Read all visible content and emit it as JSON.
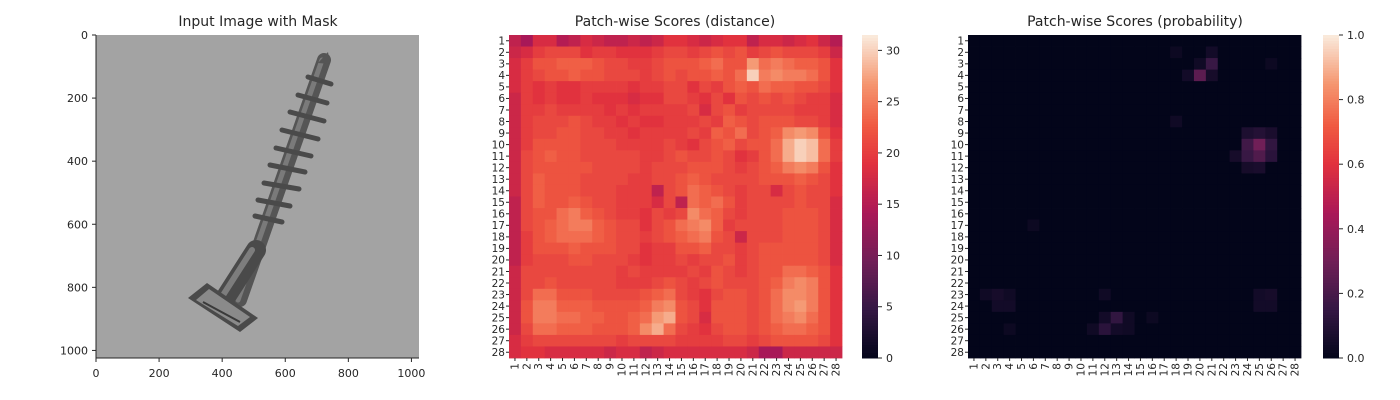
{
  "chart_data": [
    {
      "type": "image",
      "title": "Input Image with Mask",
      "xlabel": "",
      "ylabel": "",
      "xlim": [
        0,
        1024
      ],
      "ylim": [
        1024,
        0
      ],
      "xticks": [
        0,
        200,
        400,
        600,
        800,
        1000
      ],
      "yticks": [
        0,
        200,
        400,
        600,
        800,
        1000
      ],
      "grid": false
    },
    {
      "type": "heatmap",
      "title": "Patch-wise Scores (distance)",
      "xlabel": "",
      "ylabel": "",
      "rows": 28,
      "cols": 28,
      "colormap": "rocket",
      "colorbar_range": [
        0,
        31.5
      ],
      "colorbar_ticks": [
        0,
        5,
        10,
        15,
        20,
        25,
        30
      ],
      "x_tick_labels": [
        "1",
        "2",
        "3",
        "4",
        "5",
        "6",
        "7",
        "8",
        "9",
        "10",
        "11",
        "12",
        "13",
        "14",
        "15",
        "16",
        "17",
        "18",
        "19",
        "20",
        "21",
        "22",
        "23",
        "24",
        "25",
        "26",
        "27",
        "28"
      ],
      "y_tick_labels": [
        "1",
        "2",
        "3",
        "4",
        "5",
        "6",
        "7",
        "8",
        "9",
        "10",
        "11",
        "12",
        "13",
        "14",
        "15",
        "16",
        "17",
        "18",
        "19",
        "20",
        "21",
        "22",
        "23",
        "24",
        "25",
        "26",
        "27",
        "28"
      ],
      "values": [
        [
          16,
          14,
          18,
          18,
          15,
          16,
          18,
          17,
          16,
          16,
          17,
          16,
          17,
          19,
          19,
          18,
          17,
          18,
          19,
          19,
          16,
          18,
          18,
          17,
          18,
          19,
          17,
          15
        ],
        [
          17,
          18,
          20,
          21,
          21,
          21,
          19,
          20,
          20,
          19,
          19,
          19,
          20,
          21,
          21,
          20,
          21,
          22,
          21,
          22,
          20,
          21,
          22,
          21,
          21,
          21,
          20,
          17
        ],
        [
          18,
          20,
          22,
          22,
          23,
          23,
          23,
          22,
          21,
          21,
          20,
          20,
          21,
          22,
          22,
          22,
          23,
          24,
          22,
          22,
          27,
          24,
          25,
          24,
          23,
          23,
          22,
          19
        ],
        [
          18,
          20,
          21,
          22,
          22,
          23,
          22,
          22,
          21,
          21,
          21,
          20,
          21,
          22,
          21,
          22,
          22,
          23,
          22,
          24,
          30,
          25,
          26,
          25,
          25,
          24,
          22,
          19
        ],
        [
          18,
          20,
          19,
          20,
          19,
          19,
          20,
          20,
          20,
          20,
          19,
          20,
          20,
          21,
          21,
          19,
          21,
          20,
          22,
          23,
          22,
          24,
          23,
          23,
          22,
          22,
          21,
          19
        ],
        [
          17,
          20,
          19,
          20,
          19,
          19,
          20,
          19,
          19,
          19,
          18,
          19,
          19,
          21,
          21,
          20,
          19,
          21,
          19,
          22,
          21,
          22,
          21,
          22,
          21,
          20,
          20,
          18
        ],
        [
          17,
          20,
          20,
          21,
          20,
          20,
          20,
          20,
          19,
          20,
          19,
          20,
          20,
          20,
          20,
          21,
          18,
          21,
          22,
          20,
          21,
          21,
          21,
          21,
          20,
          20,
          20,
          18
        ],
        [
          17,
          20,
          21,
          21,
          21,
          22,
          21,
          20,
          20,
          19,
          20,
          19,
          19,
          20,
          20,
          20,
          21,
          20,
          23,
          22,
          21,
          22,
          22,
          22,
          21,
          21,
          20,
          18
        ],
        [
          17,
          20,
          21,
          21,
          22,
          22,
          21,
          21,
          20,
          20,
          19,
          20,
          20,
          20,
          20,
          21,
          20,
          23,
          22,
          24,
          21,
          22,
          23,
          26,
          27,
          26,
          22,
          19
        ],
        [
          17,
          20,
          22,
          22,
          22,
          22,
          21,
          21,
          21,
          20,
          20,
          20,
          20,
          21,
          20,
          19,
          21,
          22,
          23,
          21,
          22,
          22,
          24,
          28,
          30,
          29,
          24,
          20
        ],
        [
          17,
          21,
          22,
          23,
          22,
          22,
          21,
          21,
          21,
          21,
          21,
          20,
          20,
          21,
          22,
          21,
          21,
          22,
          21,
          19,
          20,
          22,
          24,
          28,
          30,
          29,
          24,
          20
        ],
        [
          17,
          21,
          22,
          22,
          22,
          22,
          22,
          21,
          21,
          21,
          21,
          20,
          21,
          21,
          21,
          22,
          22,
          22,
          21,
          20,
          21,
          22,
          23,
          25,
          26,
          25,
          22,
          19
        ],
        [
          17,
          21,
          23,
          22,
          22,
          22,
          21,
          21,
          21,
          21,
          20,
          20,
          21,
          21,
          22,
          23,
          22,
          21,
          21,
          21,
          21,
          22,
          22,
          22,
          23,
          22,
          21,
          19
        ],
        [
          17,
          21,
          23,
          22,
          22,
          22,
          21,
          21,
          21,
          20,
          20,
          20,
          16,
          21,
          22,
          24,
          23,
          22,
          21,
          20,
          21,
          21,
          18,
          21,
          22,
          21,
          21,
          19
        ],
        [
          16,
          21,
          23,
          22,
          22,
          23,
          22,
          21,
          21,
          20,
          20,
          20,
          18,
          21,
          16,
          24,
          23,
          24,
          22,
          20,
          21,
          21,
          21,
          21,
          22,
          21,
          21,
          18
        ],
        [
          16,
          21,
          22,
          22,
          24,
          25,
          23,
          22,
          21,
          20,
          20,
          19,
          21,
          20,
          21,
          26,
          24,
          23,
          21,
          20,
          21,
          21,
          21,
          22,
          22,
          22,
          21,
          18
        ],
        [
          16,
          21,
          22,
          23,
          24,
          25,
          25,
          23,
          22,
          21,
          21,
          19,
          21,
          22,
          24,
          25,
          26,
          23,
          20,
          21,
          21,
          21,
          21,
          22,
          22,
          22,
          21,
          18
        ],
        [
          16,
          20,
          22,
          23,
          24,
          24,
          24,
          23,
          22,
          21,
          21,
          20,
          21,
          22,
          23,
          24,
          25,
          22,
          21,
          17,
          21,
          21,
          21,
          22,
          22,
          22,
          21,
          18
        ],
        [
          16,
          20,
          22,
          22,
          22,
          23,
          22,
          22,
          22,
          21,
          21,
          19,
          20,
          20,
          22,
          22,
          23,
          21,
          21,
          20,
          21,
          22,
          22,
          22,
          22,
          22,
          21,
          18
        ],
        [
          16,
          20,
          21,
          21,
          21,
          22,
          22,
          21,
          21,
          21,
          20,
          19,
          20,
          20,
          21,
          20,
          21,
          21,
          22,
          20,
          21,
          22,
          22,
          22,
          22,
          22,
          21,
          18
        ],
        [
          17,
          21,
          21,
          21,
          21,
          21,
          21,
          21,
          21,
          20,
          21,
          20,
          20,
          20,
          20,
          21,
          20,
          22,
          21,
          20,
          21,
          22,
          22,
          24,
          24,
          23,
          22,
          19
        ],
        [
          17,
          21,
          21,
          22,
          21,
          21,
          21,
          21,
          21,
          20,
          20,
          20,
          21,
          22,
          21,
          20,
          21,
          22,
          21,
          21,
          21,
          22,
          23,
          25,
          26,
          25,
          22,
          19
        ],
        [
          17,
          21,
          24,
          24,
          22,
          22,
          22,
          21,
          21,
          21,
          21,
          22,
          23,
          24,
          21,
          20,
          19,
          21,
          22,
          22,
          21,
          22,
          24,
          26,
          26,
          25,
          22,
          19
        ],
        [
          17,
          22,
          25,
          25,
          23,
          23,
          23,
          22,
          22,
          22,
          22,
          23,
          25,
          26,
          22,
          21,
          19,
          22,
          22,
          22,
          21,
          22,
          24,
          26,
          27,
          25,
          22,
          19
        ],
        [
          17,
          22,
          25,
          25,
          24,
          24,
          23,
          23,
          22,
          22,
          23,
          24,
          27,
          28,
          22,
          21,
          18,
          22,
          22,
          22,
          21,
          22,
          24,
          25,
          26,
          24,
          22,
          19
        ],
        [
          17,
          21,
          24,
          24,
          23,
          23,
          23,
          22,
          22,
          22,
          23,
          26,
          28,
          24,
          21,
          20,
          19,
          21,
          22,
          22,
          21,
          22,
          23,
          24,
          24,
          23,
          22,
          19
        ],
        [
          18,
          20,
          21,
          21,
          21,
          21,
          21,
          21,
          21,
          20,
          21,
          21,
          21,
          21,
          20,
          20,
          20,
          20,
          21,
          21,
          20,
          21,
          22,
          22,
          22,
          22,
          21,
          19
        ],
        [
          18,
          19,
          19,
          18,
          18,
          18,
          18,
          18,
          17,
          18,
          18,
          16,
          17,
          18,
          18,
          18,
          18,
          18,
          18,
          18,
          17,
          14,
          14,
          17,
          17,
          17,
          17,
          17
        ]
      ]
    },
    {
      "type": "heatmap",
      "title": "Patch-wise Scores (probability)",
      "xlabel": "",
      "ylabel": "",
      "rows": 28,
      "cols": 28,
      "colormap": "rocket",
      "colorbar_range": [
        0,
        1
      ],
      "colorbar_ticks": [
        0.0,
        0.2,
        0.4,
        0.6,
        0.8,
        1.0
      ],
      "x_tick_labels": [
        "1",
        "2",
        "3",
        "4",
        "5",
        "6",
        "7",
        "8",
        "9",
        "10",
        "11",
        "12",
        "13",
        "14",
        "15",
        "16",
        "17",
        "18",
        "19",
        "20",
        "21",
        "22",
        "23",
        "24",
        "25",
        "26",
        "27",
        "28"
      ],
      "y_tick_labels": [
        "1",
        "2",
        "3",
        "4",
        "5",
        "6",
        "7",
        "8",
        "9",
        "10",
        "11",
        "12",
        "13",
        "14",
        "15",
        "16",
        "17",
        "18",
        "19",
        "20",
        "21",
        "22",
        "23",
        "24",
        "25",
        "26",
        "27",
        "28"
      ],
      "background_value": 0.0,
      "nonzero_cells": [
        {
          "row": 2,
          "col": 18,
          "value": 0.03
        },
        {
          "row": 2,
          "col": 21,
          "value": 0.05
        },
        {
          "row": 3,
          "col": 20,
          "value": 0.04
        },
        {
          "row": 3,
          "col": 21,
          "value": 0.16
        },
        {
          "row": 3,
          "col": 26,
          "value": 0.03
        },
        {
          "row": 4,
          "col": 19,
          "value": 0.05
        },
        {
          "row": 4,
          "col": 20,
          "value": 0.25
        },
        {
          "row": 4,
          "col": 21,
          "value": 0.06
        },
        {
          "row": 8,
          "col": 18,
          "value": 0.04
        },
        {
          "row": 9,
          "col": 24,
          "value": 0.08
        },
        {
          "row": 9,
          "col": 25,
          "value": 0.1
        },
        {
          "row": 9,
          "col": 26,
          "value": 0.07
        },
        {
          "row": 10,
          "col": 24,
          "value": 0.18
        },
        {
          "row": 10,
          "col": 25,
          "value": 0.3
        },
        {
          "row": 10,
          "col": 26,
          "value": 0.14
        },
        {
          "row": 11,
          "col": 23,
          "value": 0.06
        },
        {
          "row": 11,
          "col": 24,
          "value": 0.16
        },
        {
          "row": 11,
          "col": 25,
          "value": 0.22
        },
        {
          "row": 11,
          "col": 26,
          "value": 0.12
        },
        {
          "row": 12,
          "col": 24,
          "value": 0.06
        },
        {
          "row": 12,
          "col": 25,
          "value": 0.07
        },
        {
          "row": 17,
          "col": 6,
          "value": 0.03
        },
        {
          "row": 23,
          "col": 2,
          "value": 0.04
        },
        {
          "row": 23,
          "col": 3,
          "value": 0.06
        },
        {
          "row": 23,
          "col": 4,
          "value": 0.04
        },
        {
          "row": 23,
          "col": 12,
          "value": 0.04
        },
        {
          "row": 23,
          "col": 25,
          "value": 0.05
        },
        {
          "row": 23,
          "col": 26,
          "value": 0.06
        },
        {
          "row": 24,
          "col": 3,
          "value": 0.05
        },
        {
          "row": 24,
          "col": 4,
          "value": 0.05
        },
        {
          "row": 24,
          "col": 25,
          "value": 0.05
        },
        {
          "row": 24,
          "col": 26,
          "value": 0.05
        },
        {
          "row": 25,
          "col": 12,
          "value": 0.05
        },
        {
          "row": 25,
          "col": 13,
          "value": 0.14
        },
        {
          "row": 25,
          "col": 14,
          "value": 0.04
        },
        {
          "row": 25,
          "col": 16,
          "value": 0.03
        },
        {
          "row": 26,
          "col": 4,
          "value": 0.03
        },
        {
          "row": 26,
          "col": 11,
          "value": 0.04
        },
        {
          "row": 26,
          "col": 12,
          "value": 0.12
        },
        {
          "row": 26,
          "col": 13,
          "value": 0.05
        },
        {
          "row": 26,
          "col": 14,
          "value": 0.04
        }
      ]
    }
  ],
  "colors": {
    "background": "#ffffff",
    "text": "#262626",
    "image_bg": "#a3a3a3",
    "screw_dark": "#3e3e3e",
    "screw_mid": "#6a6a6a",
    "screw_light": "#8e8e8e"
  }
}
